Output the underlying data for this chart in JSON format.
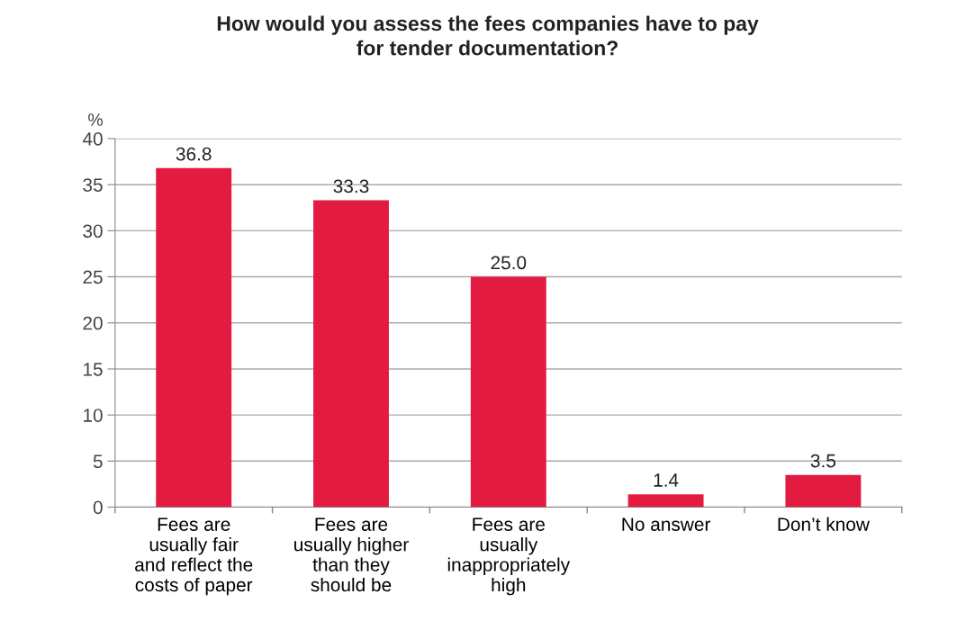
{
  "chart_data": {
    "type": "bar",
    "title": "How would you assess the fees companies have to pay\nfor tender documentation?",
    "ylabel": "%",
    "categories": [
      "Fees are\nusually fair\nand reflect the\ncosts of paper",
      "Fees are\nusually higher\nthan they\nshould be",
      "Fees are\nusually\ninappropriately\nhigh",
      "No answer",
      "Don’t know"
    ],
    "values": [
      36.8,
      33.3,
      25.0,
      1.4,
      3.5
    ],
    "value_labels": [
      "36.8",
      "33.3",
      "25.0",
      "1.4",
      "3.5"
    ],
    "color": "#e31b41",
    "ylim": [
      0,
      40
    ],
    "yticks": [
      0,
      5,
      10,
      15,
      20,
      25,
      30,
      35,
      40
    ],
    "grid": "y",
    "legend": false
  }
}
